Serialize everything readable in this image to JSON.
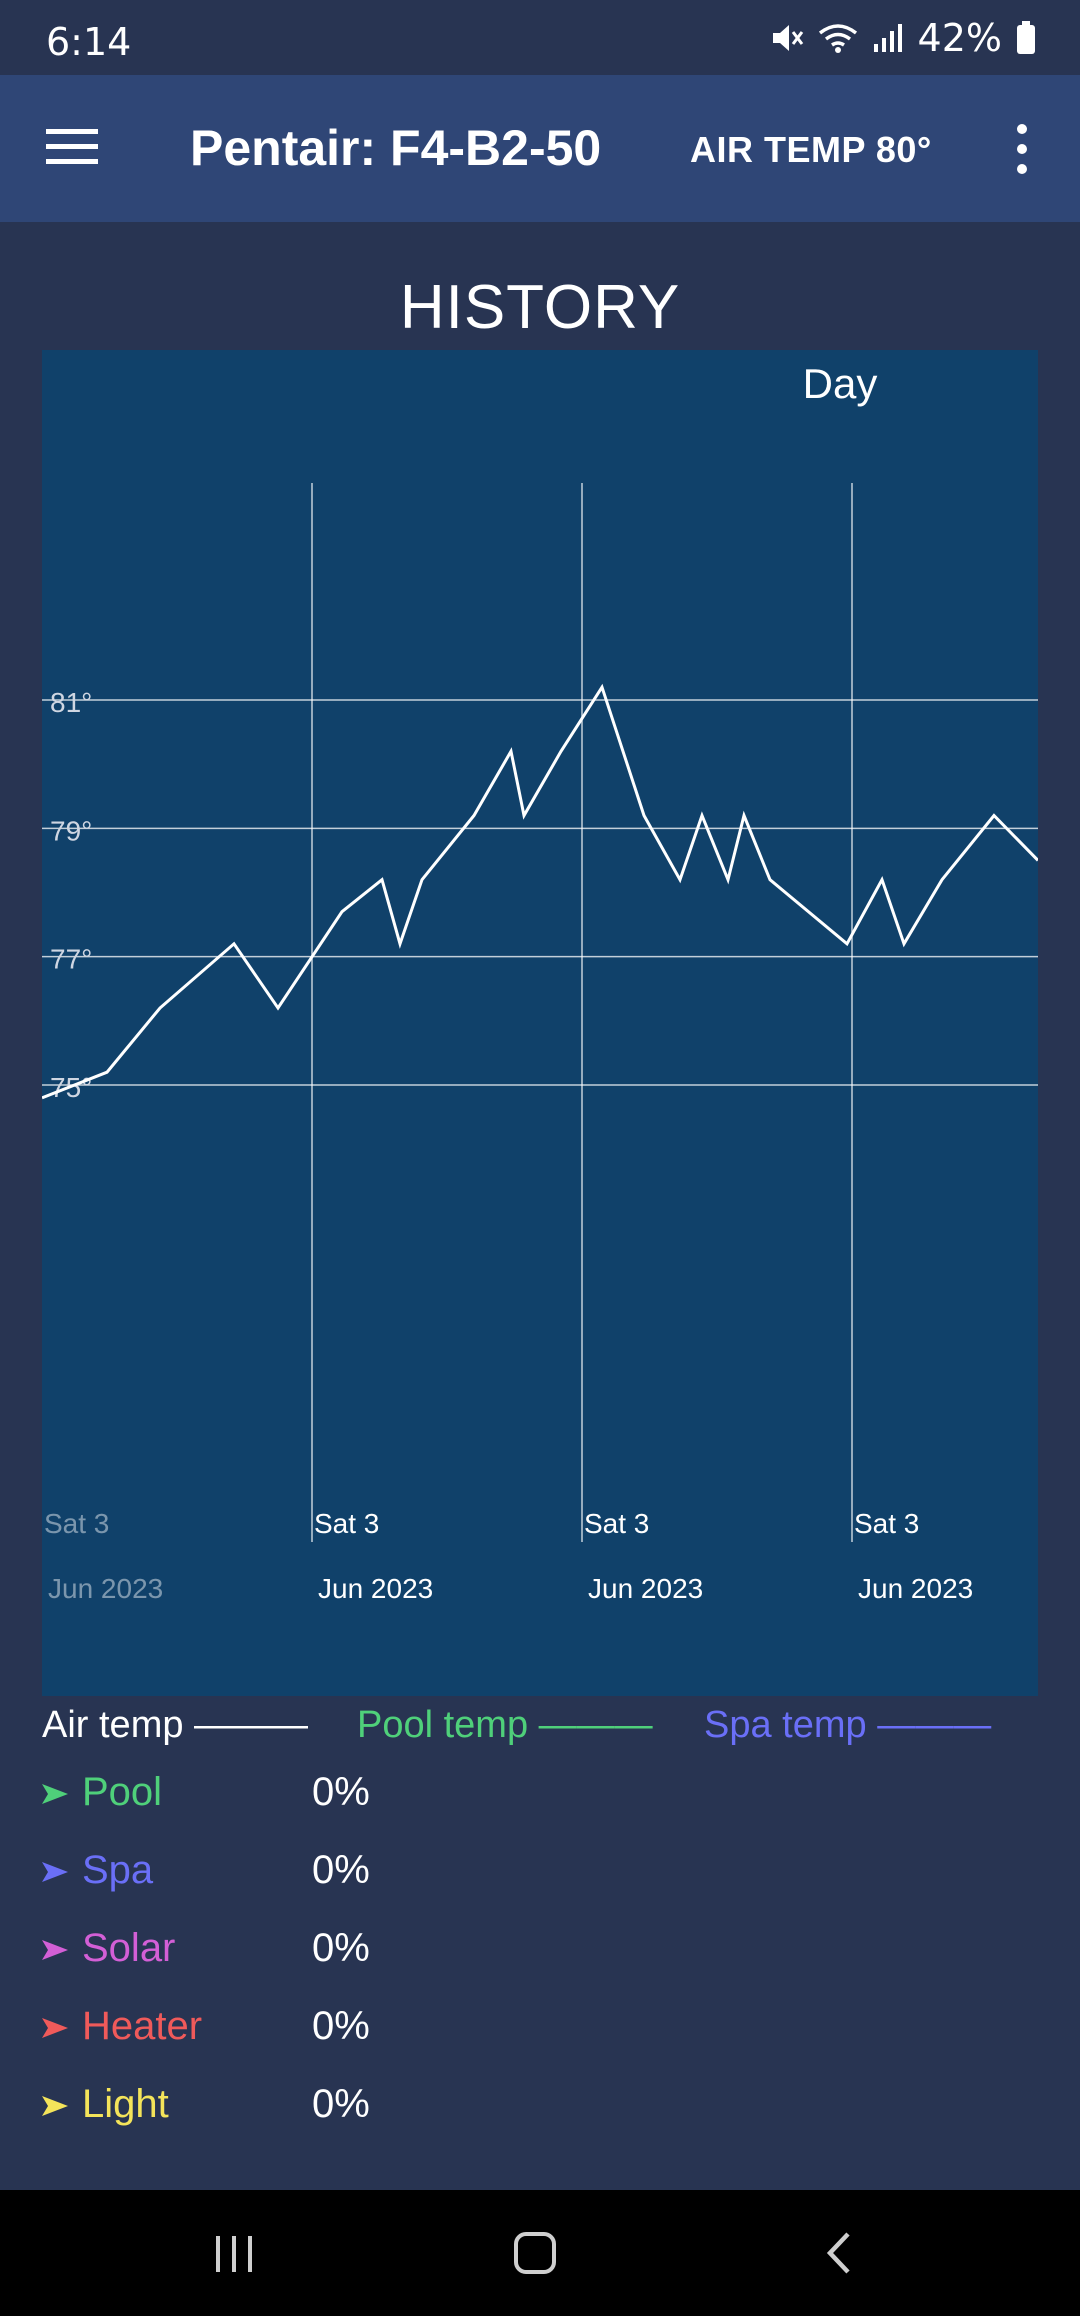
{
  "status_bar": {
    "time": "6:14",
    "battery": "42%",
    "icons": [
      "mute-icon",
      "wifi-icon",
      "signal-icon",
      "battery-icon"
    ]
  },
  "app_bar": {
    "menu_icon": "hamburger-menu-icon",
    "title": "Pentair: F4-B2-50",
    "air_temp": "AIR TEMP 80°",
    "overflow_icon": "more-vert-icon"
  },
  "history": {
    "title": "HISTORY",
    "range": "Day"
  },
  "chart_data": {
    "type": "line",
    "title": "",
    "xlabel": "",
    "ylabel": "",
    "y_ticks": [
      "75°",
      "77°",
      "79°",
      "81°"
    ],
    "x_ticks": [
      {
        "line1": "Sat 3",
        "line2": "Jun 2023"
      },
      {
        "line1": "Sat 3",
        "line2": "Jun 2023"
      },
      {
        "line1": "Sat 3",
        "line2": "Jun 2023"
      },
      {
        "line1": "Sat 3",
        "line2": "Jun 2023"
      }
    ],
    "ylim": [
      75,
      81
    ],
    "grid": true,
    "series": [
      {
        "name": "Air temp",
        "color": "#ffffff",
        "values": [
          74.8,
          75.2,
          76.2,
          77.2,
          76.2,
          77.7,
          78.2,
          77.2,
          78.2,
          79.2,
          80.2,
          79.2,
          80.2,
          81.2,
          79.2,
          78.2,
          79.2,
          78.2,
          79.2,
          78.2,
          77.2,
          78.2,
          77.2,
          78.2,
          79.2,
          78.5
        ]
      }
    ]
  },
  "legend": {
    "air": "Air temp ———",
    "pool": "Pool temp ———",
    "spa": "Spa temp ———",
    "colors": {
      "air": "#ffffff",
      "pool": "#4fd07a",
      "spa": "#6a6ff7"
    }
  },
  "equipment": [
    {
      "name": "Pool",
      "value": "0%",
      "color": "#4fd07a"
    },
    {
      "name": "Spa",
      "value": "0%",
      "color": "#6a6ff7"
    },
    {
      "name": "Solar",
      "value": "0%",
      "color": "#d35fd6"
    },
    {
      "name": "Heater",
      "value": "0%",
      "color": "#f05a5a"
    },
    {
      "name": "Light",
      "value": "0%",
      "color": "#f4e45a"
    }
  ],
  "nav": [
    "recents-icon",
    "home-icon",
    "back-icon"
  ]
}
